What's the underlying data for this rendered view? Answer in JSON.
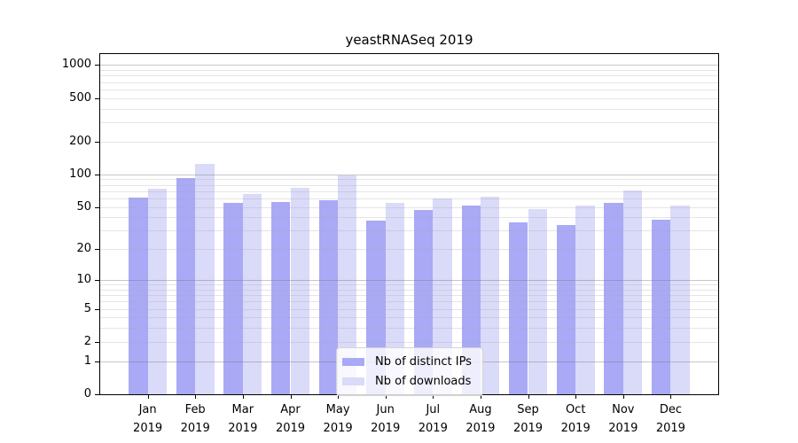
{
  "title": "yeastRNASeq 2019",
  "chart_data": {
    "type": "bar",
    "title": "yeastRNASeq 2019",
    "categories": [
      "Jan",
      "Feb",
      "Mar",
      "Apr",
      "May",
      "Jun",
      "Jul",
      "Aug",
      "Sep",
      "Oct",
      "Nov",
      "Dec"
    ],
    "year_label": "2019",
    "series": [
      {
        "name": "Nb of distinct IPs",
        "color": "#a9a9f6",
        "values": [
          61,
          92,
          54,
          56,
          58,
          37,
          47,
          51,
          36,
          34,
          54,
          38
        ]
      },
      {
        "name": "Nb of downloads",
        "color": "#dadaf9",
        "values": [
          74,
          124,
          66,
          75,
          97,
          54,
          60,
          62,
          48,
          51,
          71,
          51
        ]
      }
    ],
    "xlabel": "",
    "ylabel": "",
    "y_axis": {
      "scale": "log10(v+1)",
      "ticks": [
        0,
        1,
        2,
        5,
        10,
        20,
        50,
        100,
        200,
        500,
        1000
      ],
      "max_value": 1258
    },
    "grid": "horizontal",
    "legend_position": "lower center"
  },
  "colors": {
    "bar_distinct_ips": "#a9a9f6",
    "bar_downloads": "#dadaf9",
    "axis": "#000000",
    "grid_major": "#c6c6c6",
    "grid_minor": "#e6e6e6",
    "legend_border": "#d4d4d4"
  }
}
